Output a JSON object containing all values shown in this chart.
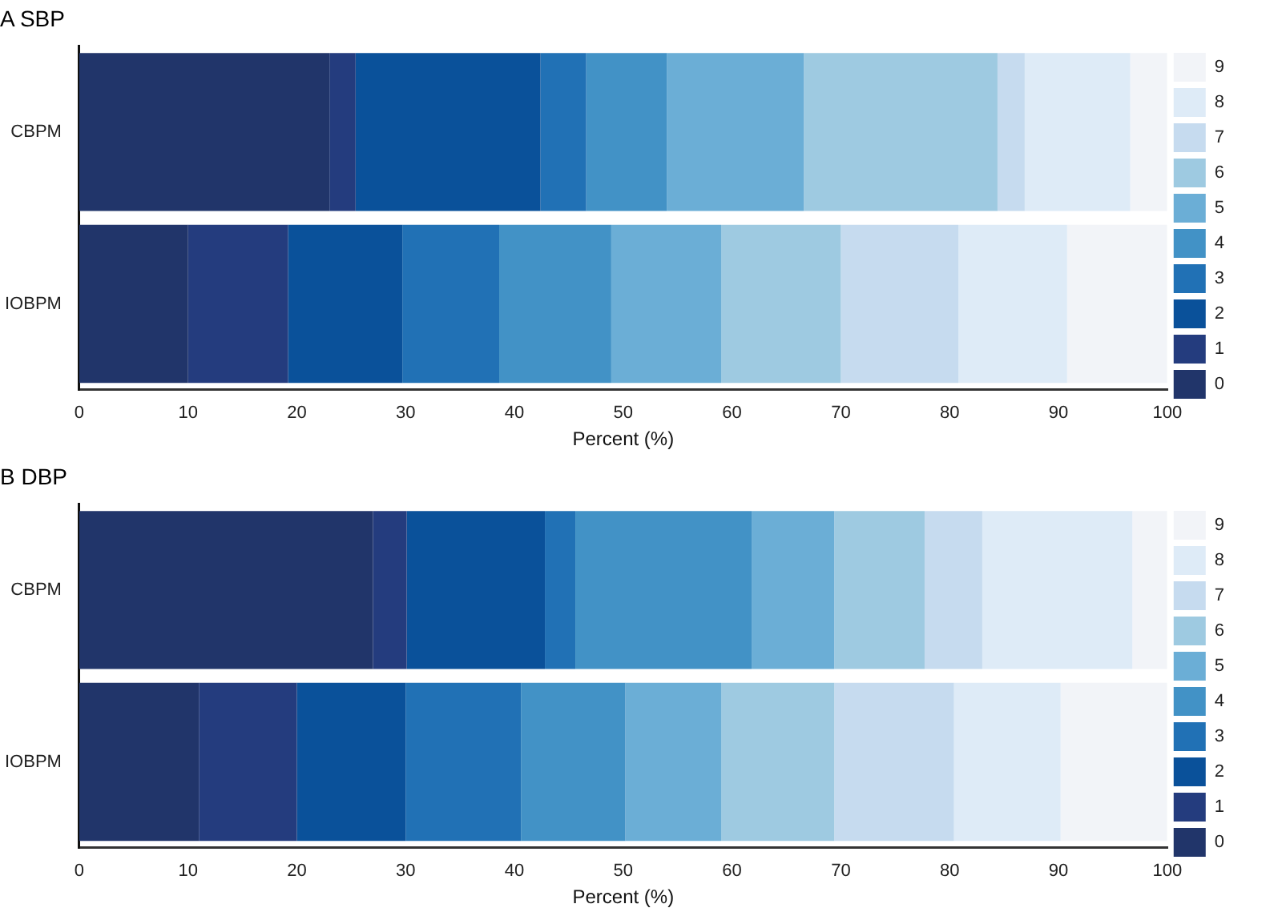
{
  "chart_data": [
    {
      "type": "bar",
      "title": "A SBP",
      "orientation": "horizontal",
      "stacked": true,
      "categories": [
        "CBPM",
        "IOBPM"
      ],
      "xlabel": "Percent (%)",
      "xlim": [
        0,
        100
      ],
      "xticks": [
        0,
        10,
        20,
        30,
        40,
        50,
        60,
        70,
        80,
        90,
        100
      ],
      "grid": false,
      "legend": "right",
      "series": [
        {
          "name": "0",
          "color": "#21356a",
          "values": [
            23,
            10
          ]
        },
        {
          "name": "1",
          "color": "#243c7e",
          "values": [
            2.4,
            9.2
          ]
        },
        {
          "name": "2",
          "color": "#0a519a",
          "values": [
            17,
            10.5
          ]
        },
        {
          "name": "3",
          "color": "#2171b5",
          "values": [
            4.2,
            8.9
          ]
        },
        {
          "name": "4",
          "color": "#4292c6",
          "values": [
            7.4,
            10.3
          ]
        },
        {
          "name": "5",
          "color": "#6baed6",
          "values": [
            12.6,
            10.1
          ]
        },
        {
          "name": "6",
          "color": "#9ecae1",
          "values": [
            17.8,
            11
          ]
        },
        {
          "name": "7",
          "color": "#c6dbef",
          "values": [
            2.5,
            10.8
          ]
        },
        {
          "name": "8",
          "color": "#deebf7",
          "values": [
            9.7,
            10
          ]
        },
        {
          "name": "9",
          "color": "#f2f4f8",
          "values": [
            3.4,
            9.2
          ]
        }
      ]
    },
    {
      "type": "bar",
      "title": "B DBP",
      "orientation": "horizontal",
      "stacked": true,
      "categories": [
        "CBPM",
        "IOBPM"
      ],
      "xlabel": "Percent (%)",
      "xlim": [
        0,
        100
      ],
      "xticks": [
        0,
        10,
        20,
        30,
        40,
        50,
        60,
        70,
        80,
        90,
        100
      ],
      "grid": false,
      "legend": "right",
      "series": [
        {
          "name": "0",
          "color": "#21356a",
          "values": [
            27,
            11
          ]
        },
        {
          "name": "1",
          "color": "#243c7e",
          "values": [
            3.1,
            9
          ]
        },
        {
          "name": "2",
          "color": "#0a519a",
          "values": [
            12.7,
            10
          ]
        },
        {
          "name": "3",
          "color": "#2171b5",
          "values": [
            2.8,
            10.6
          ]
        },
        {
          "name": "4",
          "color": "#4292c6",
          "values": [
            16.2,
            9.6
          ]
        },
        {
          "name": "5",
          "color": "#6baed6",
          "values": [
            7.6,
            8.8
          ]
        },
        {
          "name": "6",
          "color": "#9ecae1",
          "values": [
            8.3,
            10.4
          ]
        },
        {
          "name": "7",
          "color": "#c6dbef",
          "values": [
            5.3,
            11
          ]
        },
        {
          "name": "8",
          "color": "#deebf7",
          "values": [
            13.8,
            9.8
          ]
        },
        {
          "name": "9",
          "color": "#f2f4f8",
          "values": [
            3.2,
            9.8
          ]
        }
      ]
    }
  ]
}
